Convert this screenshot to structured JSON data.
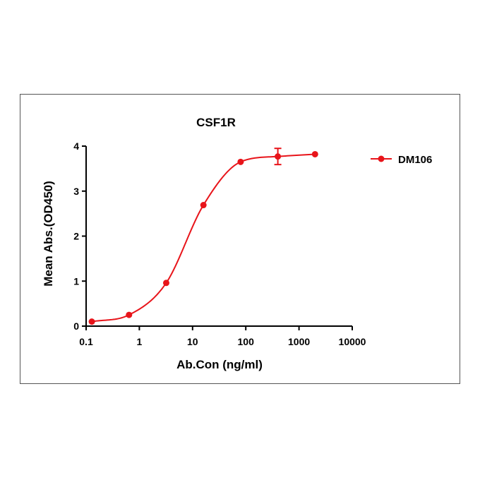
{
  "chart_data": {
    "type": "scatter",
    "title": "CSF1R",
    "xlabel": "Ab.Con (ng/ml)",
    "ylabel": "Mean Abs.(OD450)",
    "xscale": "log",
    "xlim": [
      0.1,
      10000
    ],
    "ylim": [
      0,
      4
    ],
    "x_ticks": [
      0.1,
      1,
      10,
      100,
      1000,
      10000
    ],
    "x_tick_labels": [
      "0.1",
      "1",
      "10",
      "100",
      "1000",
      "10000"
    ],
    "y_ticks": [
      0,
      1,
      2,
      3,
      4
    ],
    "y_tick_labels": [
      "0",
      "1",
      "2",
      "3",
      "4"
    ],
    "grid": false,
    "legend": {
      "position": "right",
      "entries": [
        "DM106"
      ]
    },
    "series": [
      {
        "name": "DM106",
        "color": "#e8141a",
        "marker": "circle",
        "fit": "4PL",
        "x": [
          0.128,
          0.64,
          3.2,
          16,
          80,
          400,
          2000
        ],
        "y": [
          0.1,
          0.25,
          0.96,
          2.69,
          3.65,
          3.77,
          3.82
        ],
        "error": [
          0,
          0,
          0,
          0,
          0,
          0.18,
          0
        ]
      }
    ]
  }
}
